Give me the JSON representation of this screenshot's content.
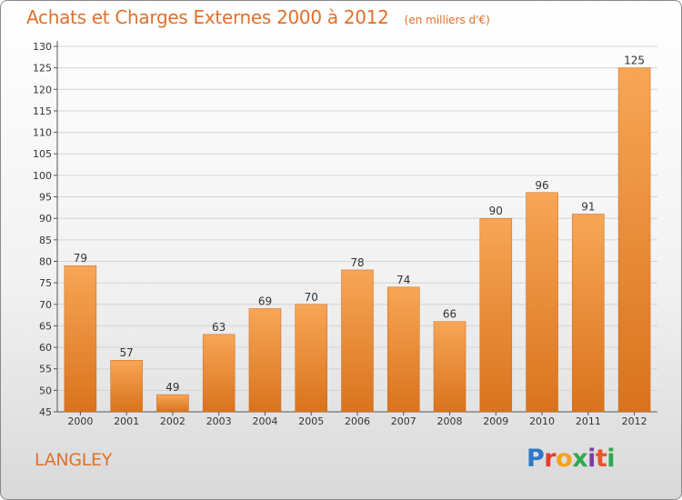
{
  "header": {
    "title": "Achats et Charges Externes 2000 à 2012",
    "subtitle": "(en milliers d'€)"
  },
  "commune": "LANGLEY",
  "logo": {
    "text": "Proxiti",
    "colors": [
      "#2b79c9",
      "#e63c2c",
      "#f7a21b",
      "#2fa84f",
      "#7b3fa0",
      "#e8542a",
      "#2fa84f"
    ]
  },
  "colors": {
    "bar_top": "#f7a656",
    "bar_bottom": "#d9731d",
    "accent": "#e0702a"
  },
  "chart_data": {
    "type": "bar",
    "title": "Achats et Charges Externes 2000 à 2012",
    "subtitle": "(en milliers d'€)",
    "categories": [
      "2000",
      "2001",
      "2002",
      "2003",
      "2004",
      "2005",
      "2006",
      "2007",
      "2008",
      "2009",
      "2010",
      "2011",
      "2012"
    ],
    "values": [
      79,
      57,
      49,
      63,
      69,
      70,
      78,
      74,
      66,
      90,
      96,
      91,
      125
    ],
    "ylim": [
      45,
      130
    ],
    "yticks": [
      45,
      50,
      55,
      60,
      65,
      70,
      75,
      80,
      85,
      90,
      95,
      100,
      105,
      110,
      115,
      120,
      125,
      130
    ],
    "grid": true,
    "data_labels": true
  }
}
